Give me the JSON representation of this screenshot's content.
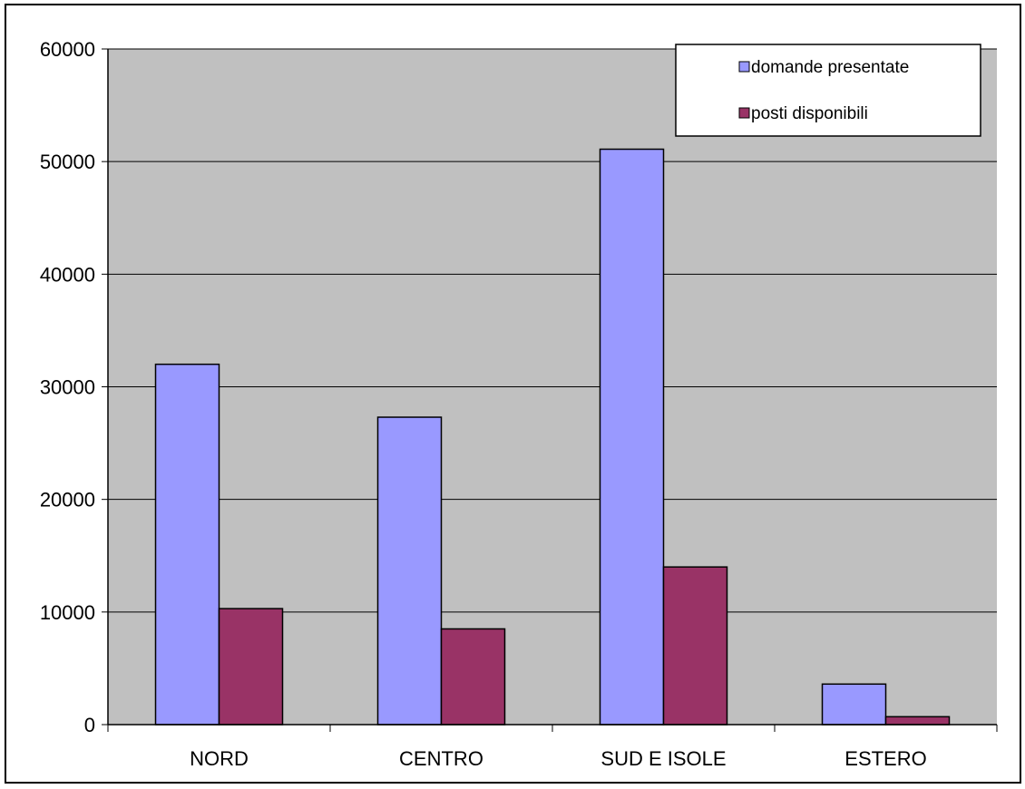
{
  "chart_data": {
    "type": "bar",
    "title": "",
    "xlabel": "",
    "ylabel": "",
    "categories": [
      "NORD",
      "CENTRO",
      "SUD E ISOLE",
      "ESTERO"
    ],
    "series": [
      {
        "name": "domande presentate",
        "color": "#9999ff",
        "values": [
          32000,
          27300,
          51100,
          3600
        ]
      },
      {
        "name": "posti disponibili",
        "color": "#993366",
        "values": [
          10300,
          8500,
          14000,
          700
        ]
      }
    ],
    "ylim": [
      0,
      60000
    ],
    "yticks": [
      "0",
      "10000",
      "20000",
      "30000",
      "40000",
      "50000",
      "60000"
    ],
    "grid": true,
    "plot_background": "#c0c0c0",
    "legend_position": "top-right"
  }
}
